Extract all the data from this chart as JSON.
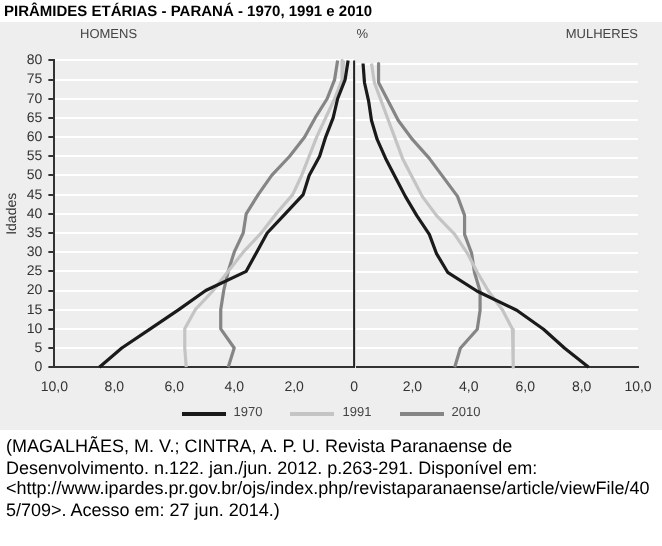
{
  "chart_data": [
    {
      "type": "line",
      "orientation": "horizontal",
      "title": "PIRÂMIDES ETÁRIAS - PARANÁ - 1970, 1991 e 2010",
      "ylabel": "Idades",
      "annotations": [
        "HOMENS",
        "%",
        "(MAGALHÃES, M. V.; CINTRA, A. P. U. Revista Paranaense de Desenvolvimento. n.122. jan./jun. 2012. p.263-291. Disponível em: <http://www.ipardes.pr.gov.br/ojs/index.php/revistaparanaense/article/viewFile/405/709>. Acesso em: 27 jun. 2014.)"
      ],
      "categories": [
        "80",
        "75",
        "70",
        "65",
        "60",
        "55",
        "50",
        "45",
        "40",
        "35",
        "30",
        "25",
        "20",
        "15",
        "10",
        "5",
        "0"
      ],
      "xlim": [
        10,
        0
      ],
      "xticks": [
        {
          "value": 10,
          "label": "10,0"
        },
        {
          "value": 8,
          "label": "8,0"
        },
        {
          "value": 6,
          "label": "6,0"
        },
        {
          "value": 4,
          "label": "4,0"
        },
        {
          "value": 2,
          "label": "2,0"
        },
        0
      ],
      "grid": "y",
      "legend": "bottom",
      "marker": "none",
      "line_style": "solid",
      "ref_lines": [
        {
          "axis": "x",
          "value": 0,
          "color": "#222222"
        }
      ],
      "series": [
        {
          "name": "1970",
          "color": "#1a1a1a",
          "values": [
            0.2,
            0.3,
            0.55,
            0.7,
            0.95,
            1.15,
            1.5,
            1.7,
            2.3,
            2.9,
            3.25,
            3.6,
            4.95,
            5.85,
            6.8,
            7.75,
            8.5
          ]
        },
        {
          "name": "1991",
          "color": "#c4c4c4",
          "values": [
            0.35,
            0.4,
            0.65,
            0.95,
            1.25,
            1.5,
            1.75,
            2.05,
            2.6,
            3.1,
            3.7,
            4.2,
            4.7,
            5.3,
            5.65,
            5.65,
            5.6
          ]
        },
        {
          "name": "2010",
          "color": "#858585",
          "values": [
            0.55,
            0.65,
            0.9,
            1.3,
            1.65,
            2.15,
            2.75,
            3.2,
            3.6,
            3.7,
            4.0,
            4.2,
            4.35,
            4.45,
            4.45,
            4.0,
            4.2
          ]
        }
      ]
    },
    {
      "type": "line",
      "orientation": "horizontal",
      "annotations": [
        "MULHERES"
      ],
      "categories": [
        "80",
        "75",
        "70",
        "65",
        "60",
        "55",
        "50",
        "45",
        "40",
        "35",
        "30",
        "25",
        "20",
        "15",
        "10",
        "5",
        "0"
      ],
      "xlim": [
        0,
        10
      ],
      "xticks": [
        {
          "value": 2,
          "label": "2,0"
        },
        {
          "value": 4,
          "label": "4,0"
        },
        {
          "value": 6,
          "label": "6,0"
        },
        {
          "value": 8,
          "label": "8,0"
        },
        {
          "value": 10,
          "label": "10,0"
        }
      ],
      "grid": "y",
      "tick_labels": "x",
      "marker": "none",
      "line_style": "solid",
      "series": [
        {
          "color": "#1a1a1a",
          "values": [
            0.25,
            0.3,
            0.45,
            0.55,
            0.75,
            1.05,
            1.4,
            1.75,
            2.15,
            2.6,
            2.85,
            3.25,
            4.3,
            5.7,
            6.65,
            7.4,
            8.25
          ]
        },
        {
          "color": "#c4c4c4",
          "values": [
            0.55,
            0.65,
            0.9,
            1.15,
            1.4,
            1.65,
            2.0,
            2.35,
            2.85,
            3.5,
            3.95,
            4.3,
            4.7,
            5.2,
            5.55,
            5.6,
            5.55
          ]
        },
        {
          "color": "#858585",
          "values": [
            0.8,
            0.8,
            1.15,
            1.5,
            2.0,
            2.6,
            3.1,
            3.6,
            3.85,
            3.85,
            4.1,
            4.2,
            4.4,
            4.4,
            4.3,
            3.7,
            3.5
          ]
        }
      ]
    }
  ]
}
